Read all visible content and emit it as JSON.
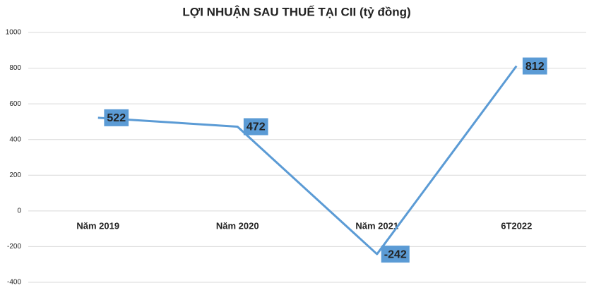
{
  "chart_data": {
    "type": "line",
    "title": "LỢI NHUẬN SAU THUẾ TẠI CII (tỷ đồng)",
    "categories": [
      "Năm 2019",
      "Năm 2020",
      "Năm 2021",
      "6T2022"
    ],
    "values": [
      522,
      472,
      -242,
      812
    ],
    "color": "#5b9bd5",
    "ylim": [
      -400,
      1000
    ],
    "yticks": [
      -400,
      -200,
      0,
      200,
      400,
      600,
      800,
      1000
    ],
    "grid": true
  }
}
